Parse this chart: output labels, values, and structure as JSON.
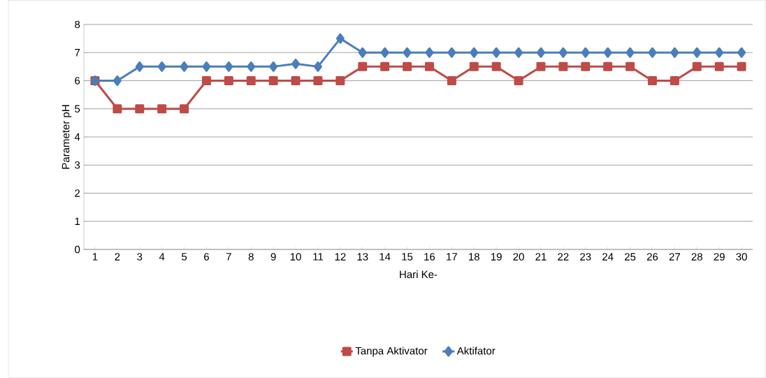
{
  "chart_data": {
    "type": "line",
    "xlabel": "Hari Ke-",
    "ylabel": "Parameter pH",
    "categories": [
      "1",
      "2",
      "3",
      "4",
      "5",
      "6",
      "7",
      "8",
      "9",
      "10",
      "11",
      "12",
      "13",
      "14",
      "15",
      "16",
      "17",
      "18",
      "19",
      "20",
      "21",
      "22",
      "23",
      "24",
      "25",
      "26",
      "27",
      "28",
      "29",
      "30"
    ],
    "series": [
      {
        "name": "Aktifator",
        "color": "#4a7ebb",
        "marker": "diamond",
        "values": [
          6,
          6,
          6.5,
          6.5,
          6.5,
          6.5,
          6.5,
          6.5,
          6.5,
          6.6,
          6.5,
          7.5,
          7,
          7,
          7,
          7,
          7,
          7,
          7,
          7,
          7,
          7,
          7,
          7,
          7,
          7,
          7,
          7,
          7,
          7
        ]
      },
      {
        "name": "Tanpa Aktivator",
        "color": "#be4b48",
        "marker": "square",
        "values": [
          6,
          5,
          5,
          5,
          5,
          6,
          6,
          6,
          6,
          6,
          6,
          6,
          6.5,
          6.5,
          6.5,
          6.5,
          6,
          6.5,
          6.5,
          6,
          6.5,
          6.5,
          6.5,
          6.5,
          6.5,
          6,
          6,
          6.5,
          6.5,
          6.5
        ]
      }
    ],
    "ylim": [
      0,
      8
    ],
    "yticks": [
      0,
      1,
      2,
      3,
      4,
      5,
      6,
      7,
      8
    ],
    "grid": "y",
    "legend": "bottom",
    "line_style": "solid"
  }
}
